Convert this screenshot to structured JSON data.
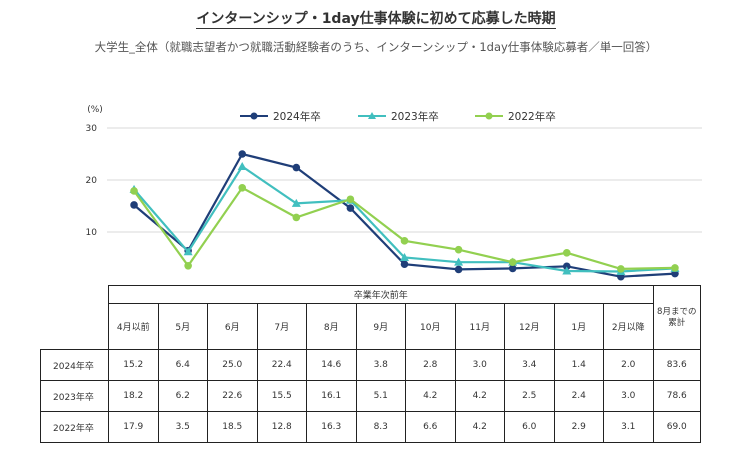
{
  "title": "インターンシップ・1day仕事体験に初めて応募した時期",
  "subtitle": "大学生_全体（就職志望者かつ就職活動経験者のうち、インターンシップ・1day仕事体験応募者／単一回答）",
  "chart_data": {
    "type": "line",
    "y_unit": "(%)",
    "ylim": [
      0,
      30
    ],
    "yticks": [
      10,
      20,
      30
    ],
    "grid": true,
    "legend_position": "top",
    "categories": [
      "4月以前",
      "5月",
      "6月",
      "7月",
      "8月",
      "9月",
      "10月",
      "11月",
      "12月",
      "1月",
      "2月以降"
    ],
    "series": [
      {
        "name": "2024年卒",
        "color": "#1f3e78",
        "marker": "circle",
        "values": [
          15.2,
          6.4,
          25.0,
          22.4,
          14.6,
          3.8,
          2.8,
          3.0,
          3.4,
          1.4,
          2.0
        ]
      },
      {
        "name": "2023年卒",
        "color": "#41bfbf",
        "marker": "triangle",
        "values": [
          18.2,
          6.2,
          22.6,
          15.5,
          16.1,
          5.1,
          4.2,
          4.2,
          2.5,
          2.4,
          3.0
        ]
      },
      {
        "name": "2022年卒",
        "color": "#92d050",
        "marker": "circle",
        "values": [
          17.9,
          3.5,
          18.5,
          12.8,
          16.3,
          8.3,
          6.6,
          4.2,
          6.0,
          2.9,
          3.1
        ]
      }
    ]
  },
  "table": {
    "group_header": "卒業年次前年",
    "total_header_line1": "8月までの",
    "total_header_line2": "累計",
    "rows": [
      {
        "label": "2024年卒",
        "values": [
          "15.2",
          "6.4",
          "25.0",
          "22.4",
          "14.6",
          "3.8",
          "2.8",
          "3.0",
          "3.4",
          "1.4",
          "2.0"
        ],
        "total": "83.6"
      },
      {
        "label": "2023年卒",
        "values": [
          "18.2",
          "6.2",
          "22.6",
          "15.5",
          "16.1",
          "5.1",
          "4.2",
          "4.2",
          "2.5",
          "2.4",
          "3.0"
        ],
        "total": "78.6"
      },
      {
        "label": "2022年卒",
        "values": [
          "17.9",
          "3.5",
          "18.5",
          "12.8",
          "16.3",
          "8.3",
          "6.6",
          "4.2",
          "6.0",
          "2.9",
          "3.1"
        ],
        "total": "69.0"
      }
    ]
  }
}
